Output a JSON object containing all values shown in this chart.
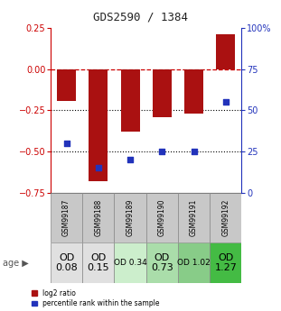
{
  "title": "GDS2590 / 1384",
  "samples": [
    "GSM99187",
    "GSM99188",
    "GSM99189",
    "GSM99190",
    "GSM99191",
    "GSM99192"
  ],
  "log2_ratio": [
    -0.19,
    -0.68,
    -0.38,
    -0.29,
    -0.27,
    0.21
  ],
  "percentile_rank": [
    30,
    15,
    20,
    25,
    25,
    55
  ],
  "ylim_left": [
    -0.75,
    0.25
  ],
  "ylim_right": [
    0,
    100
  ],
  "yticks_left": [
    -0.75,
    -0.5,
    -0.25,
    0,
    0.25
  ],
  "yticks_right": [
    0,
    25,
    50,
    75,
    100
  ],
  "bar_color": "#aa1111",
  "dot_color": "#2233bb",
  "age_labels": [
    "OD\n0.08",
    "OD\n0.15",
    "OD 0.34",
    "OD\n0.73",
    "OD 1.02",
    "OD\n1.27"
  ],
  "age_bg_colors": [
    "#e0e0e0",
    "#e0e0e0",
    "#cceecc",
    "#aaddaa",
    "#88cc88",
    "#44bb44"
  ],
  "age_font_sizes": [
    8,
    8,
    6.5,
    8,
    6.5,
    8
  ],
  "cell_bg_color": "#c8c8c8",
  "ref_line_color": "#cc0000",
  "title_color": "#222222",
  "legend_bar_label": "log2 ratio",
  "legend_dot_label": "percentile rank within the sample"
}
